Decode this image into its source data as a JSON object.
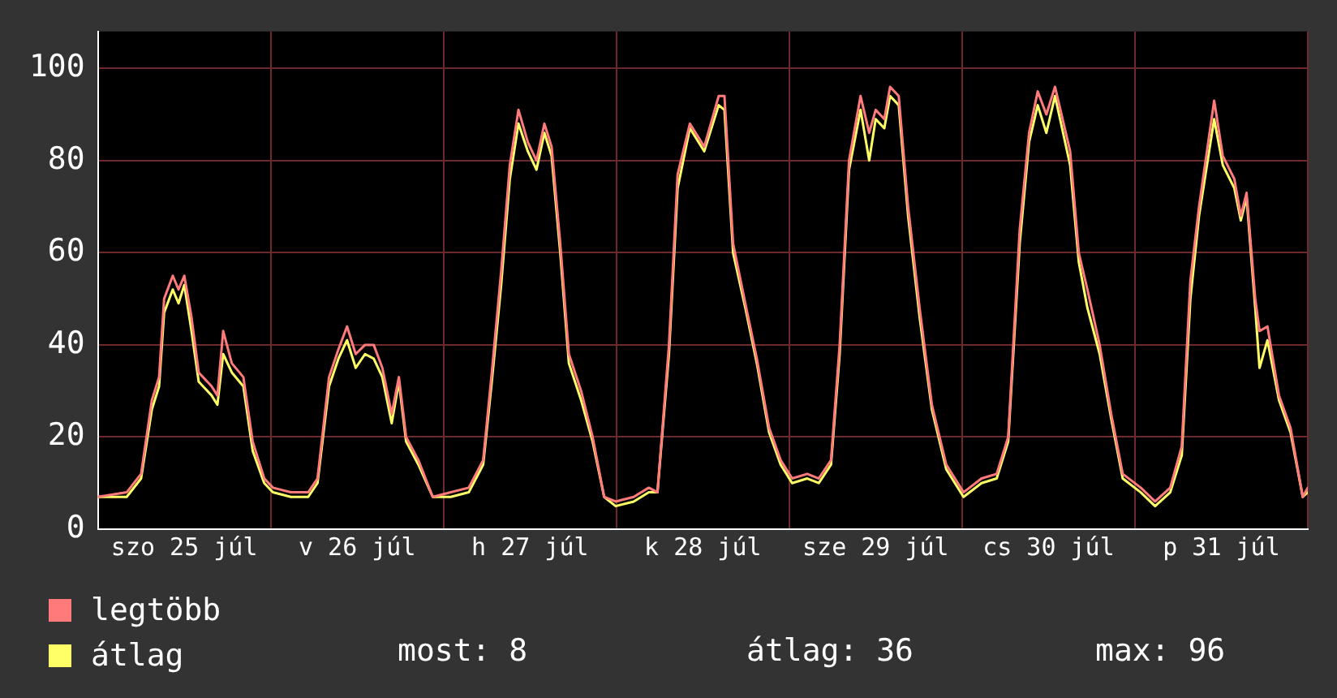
{
  "chart_data": {
    "type": "line",
    "x": [
      "--07-25T00:00",
      "--07-25T04:00",
      "--07-25T06:00",
      "--07-25T07:30",
      "--07-25T08:30",
      "--07-25T09:12",
      "--07-25T10:24",
      "--07-25T11:12",
      "--07-25T12:00",
      "--07-25T13:00",
      "--07-25T14:00",
      "--07-25T15:48",
      "--07-25T16:36",
      "--07-25T17:24",
      "--07-25T18:36",
      "--07-25T20:12",
      "--07-25T21:30",
      "--07-25T23:06",
      "--07-26T00:18",
      "--07-26T02:48",
      "--07-26T05:12",
      "--07-26T06:30",
      "--07-26T08:06",
      "--07-26T09:24",
      "--07-26T10:36",
      "--07-26T11:48",
      "--07-26T13:06",
      "--07-26T14:18",
      "--07-26T15:30",
      "--07-26T16:48",
      "--07-26T17:48",
      "--07-26T18:48",
      "--07-26T20:30",
      "--07-26T22:30",
      "--07-27T01:00",
      "--07-27T03:30",
      "--07-27T05:30",
      "--07-27T06:42",
      "--07-27T08:00",
      "--07-27T09:12",
      "--07-27T10:24",
      "--07-27T11:42",
      "--07-27T12:54",
      "--07-27T14:00",
      "--07-27T15:00",
      "--07-27T16:12",
      "--07-27T17:24",
      "--07-27T19:06",
      "--07-27T20:42",
      "--07-27T22:18",
      "--07-27T23:54",
      "--07-28T02:24",
      "--07-28T04:30",
      "--07-28T05:42",
      "--07-28T07:18",
      "--07-28T08:30",
      "--07-28T10:12",
      "--07-28T12:12",
      "--07-28T14:12",
      "--07-28T15:00",
      "--07-28T16:12",
      "--07-28T17:54",
      "--07-28T19:30",
      "--07-28T21:12",
      "--07-28T22:48",
      "--07-29T00:24",
      "--07-29T02:30",
      "--07-29T04:06",
      "--07-29T05:48",
      "--07-29T07:00",
      "--07-29T08:18",
      "--07-29T09:54",
      "--07-29T11:06",
      "--07-29T12:00",
      "--07-29T13:12",
      "--07-29T14:00",
      "--07-29T15:12",
      "--07-29T16:30",
      "--07-29T18:06",
      "--07-29T19:48",
      "--07-29T21:48",
      "--07-30T00:12",
      "--07-30T02:42",
      "--07-30T04:48",
      "--07-30T06:24",
      "--07-30T08:00",
      "--07-30T09:18",
      "--07-30T10:30",
      "--07-30T11:42",
      "--07-30T12:54",
      "--07-30T15:00",
      "--07-30T16:12",
      "--07-30T17:24",
      "--07-30T19:06",
      "--07-30T20:42",
      "--07-30T22:18",
      "--07-31T00:48",
      "--07-31T02:48",
      "--07-31T04:54",
      "--07-31T06:30",
      "--07-31T07:42",
      "--07-31T08:54",
      "--07-31T11:00",
      "--07-31T12:12",
      "--07-31T13:48",
      "--07-31T14:42",
      "--07-31T15:30",
      "--07-31T16:42",
      "--07-31T17:18",
      "--07-31T18:24",
      "--07-31T20:00",
      "--07-31T21:36",
      "--07-31T23:18",
      "--08-01T00:00"
    ],
    "series": [
      {
        "name": "legtöbb",
        "color": "#ff7b7b",
        "values": [
          7,
          8,
          12,
          28,
          33,
          50,
          55,
          52,
          55,
          46,
          34,
          31,
          29,
          43,
          36,
          33,
          19,
          11,
          9,
          8,
          8,
          11,
          33,
          39,
          44,
          38,
          40,
          40,
          35,
          25,
          33,
          20,
          15,
          7,
          8,
          9,
          15,
          34,
          56,
          79,
          91,
          84,
          80,
          88,
          83,
          62,
          38,
          30,
          20,
          7,
          6,
          7,
          9,
          8,
          40,
          77,
          88,
          83,
          94,
          94,
          62,
          49,
          37,
          22,
          15,
          11,
          12,
          11,
          15,
          40,
          80,
          94,
          86,
          91,
          89,
          96,
          94,
          70,
          48,
          27,
          14,
          8,
          11,
          12,
          20,
          65,
          86,
          95,
          90,
          96,
          82,
          60,
          52,
          40,
          25,
          12,
          9,
          6,
          9,
          18,
          54,
          70,
          93,
          81,
          76,
          68,
          73,
          50,
          43,
          44,
          29,
          22,
          7,
          9
        ]
      },
      {
        "name": "átlag",
        "color": "#ffff66",
        "values": [
          7,
          7,
          11,
          26,
          31,
          47,
          52,
          49,
          53,
          43,
          32,
          29,
          27,
          38,
          34,
          31,
          17,
          10,
          8,
          7,
          7,
          10,
          31,
          37,
          41,
          35,
          38,
          37,
          33,
          23,
          32,
          19,
          14,
          7,
          7,
          8,
          14,
          32,
          53,
          76,
          88,
          82,
          78,
          86,
          81,
          60,
          36,
          28,
          19,
          7,
          5,
          6,
          8,
          8,
          38,
          74,
          87,
          82,
          92,
          91,
          60,
          48,
          36,
          21,
          14,
          10,
          11,
          10,
          14,
          38,
          78,
          91,
          80,
          89,
          87,
          94,
          92,
          68,
          46,
          26,
          13,
          7,
          10,
          11,
          19,
          62,
          84,
          92,
          86,
          94,
          79,
          58,
          48,
          38,
          24,
          11,
          8,
          5,
          8,
          16,
          50,
          68,
          89,
          79,
          74,
          67,
          72,
          48,
          35,
          41,
          28,
          21,
          7,
          8
        ]
      }
    ],
    "xlim": [
      "--07-25T00:00",
      "--08-01T00:00"
    ],
    "xticks": [
      {
        "value": "--07-25T00:00",
        "label": null
      },
      {
        "value": "--07-25T12:00",
        "label": "szo 25 júl"
      },
      {
        "value": "--07-26T00:00",
        "label": null
      },
      {
        "value": "--07-26T12:00",
        "label": "v 26 júl"
      },
      {
        "value": "--07-27T00:00",
        "label": null
      },
      {
        "value": "--07-27T12:00",
        "label": "h 27 júl"
      },
      {
        "value": "--07-28T00:00",
        "label": null
      },
      {
        "value": "--07-28T12:00",
        "label": "k 28 júl"
      },
      {
        "value": "--07-29T00:00",
        "label": null
      },
      {
        "value": "--07-29T12:00",
        "label": "sze 29 júl"
      },
      {
        "value": "--07-30T00:00",
        "label": null
      },
      {
        "value": "--07-30T12:00",
        "label": "cs 30 júl"
      },
      {
        "value": "--07-31T00:00",
        "label": null
      },
      {
        "value": "--07-31T12:00",
        "label": "p 31 júl"
      },
      {
        "value": "--08-01T00:00",
        "label": null
      }
    ],
    "ylim": [
      0,
      108
    ],
    "yticks": [
      0,
      20,
      40,
      60,
      80,
      100
    ],
    "grid": true,
    "legend": "bottom left",
    "annotations": [
      "most: 8",
      "átlag: 36",
      "max: 96"
    ]
  }
}
